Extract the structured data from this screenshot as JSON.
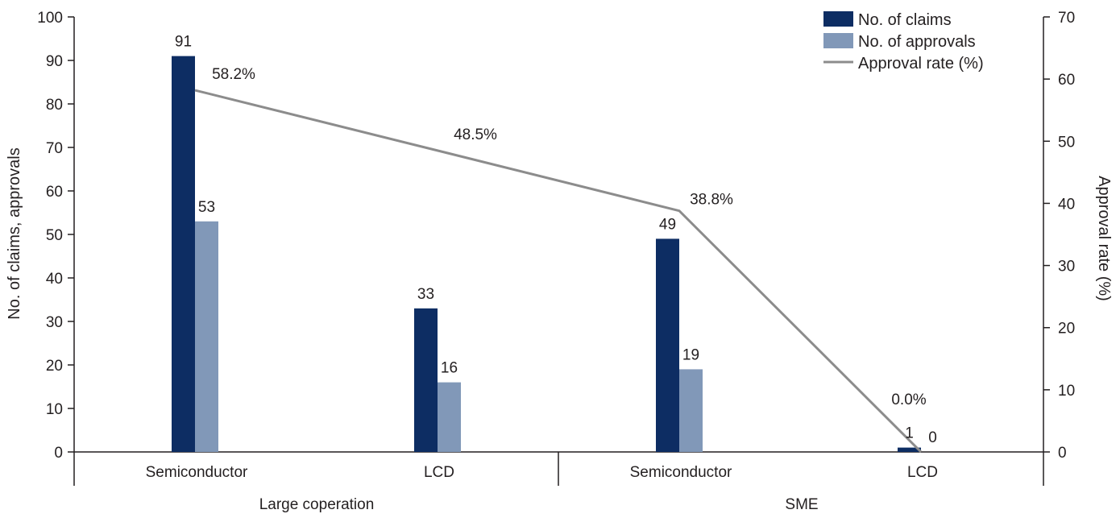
{
  "chart_data": {
    "type": "bar+line",
    "groups": [
      {
        "label": "Large coperation",
        "categories": [
          "Semiconductor",
          "LCD"
        ]
      },
      {
        "label": "SME",
        "categories": [
          "Semiconductor",
          "LCD"
        ]
      }
    ],
    "categories": [
      "Semiconductor",
      "LCD",
      "Semiconductor",
      "LCD"
    ],
    "series": [
      {
        "name": "No. of claims",
        "type": "bar",
        "axis": "left",
        "color": "#0d2d63",
        "values": [
          91,
          33,
          49,
          1
        ],
        "labels": [
          "91",
          "33",
          "49",
          "1"
        ]
      },
      {
        "name": "No. of approvals",
        "type": "bar",
        "axis": "left",
        "color": "#8198b8",
        "values": [
          53,
          16,
          19,
          0
        ],
        "labels": [
          "53",
          "16",
          "19",
          "0"
        ]
      },
      {
        "name": "Approval rate (%)",
        "type": "line",
        "axis": "right",
        "color": "#8c8c8c",
        "values": [
          58.2,
          48.5,
          38.8,
          0.0
        ],
        "labels": [
          "58.2%",
          "48.5%",
          "38.8%",
          "0.0%"
        ]
      }
    ],
    "ylabel_left": "No. of claims, approvals",
    "ylabel_right": "Approval rate (%)",
    "ylim_left": [
      0,
      100
    ],
    "yticks_left": [
      "0",
      "10",
      "20",
      "30",
      "40",
      "50",
      "60",
      "70",
      "80",
      "90",
      "100"
    ],
    "ylim_right": [
      0,
      70
    ],
    "yticks_right": [
      "0",
      "10",
      "20",
      "30",
      "40",
      "50",
      "60",
      "70"
    ],
    "legend_position": "top-right",
    "grid": false
  }
}
